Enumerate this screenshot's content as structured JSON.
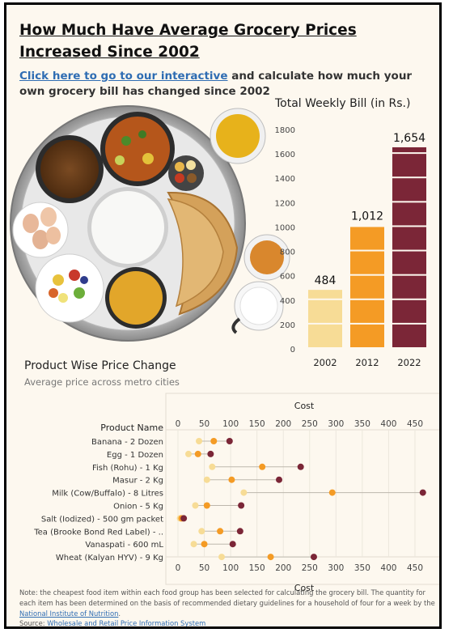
{
  "title": "How Much Have Average Grocery Prices Increased Since 2002",
  "intro": {
    "link_text": "Click here to go to our interactive",
    "rest_text": " and calculate how much your own grocery bill has changed since 2002"
  },
  "bar_chart": {
    "title": "Total Weekly Bill (in Rs.)"
  },
  "dot_chart": {
    "title": "Product Wise Price Change",
    "subtitle": "Average price across metro cities"
  },
  "note": {
    "text": "Note: the cheapest food item within each food group has been selected for calculating the grocery bill. The quantity for each item has been determined on the basis of recommended dietary guidelines for a household of four for a week by the ",
    "link_text": "National Institute of Nutrition",
    "end": "."
  },
  "source": {
    "label": "Source: ",
    "link_text": "Wholesale and Retail Price Information System"
  },
  "colors": {
    "y2002": "#f7dc96",
    "y2012": "#f49b25",
    "y2022": "#7b2637",
    "link": "#2f6db3"
  },
  "chart_data": [
    {
      "type": "bar",
      "title": "Total Weekly Bill (in Rs.)",
      "categories": [
        "2002",
        "2012",
        "2022"
      ],
      "values": [
        484,
        1012,
        1654
      ],
      "data_labels": [
        "484",
        "1,012",
        "1,654"
      ],
      "ylim": [
        0,
        1800
      ],
      "yticks": [
        0,
        200,
        400,
        600,
        800,
        1000,
        1200,
        1400,
        1600,
        1800
      ],
      "colors": [
        "#f7dc96",
        "#f49b25",
        "#7b2637"
      ]
    },
    {
      "type": "scatter",
      "title": "Product Wise Price Change",
      "subtitle": "Average price across metro cities",
      "xlabel": "Cost",
      "ylabel": "Product Name",
      "xlim": [
        0,
        470
      ],
      "xticks": [
        0,
        50,
        100,
        150,
        200,
        250,
        300,
        350,
        400,
        450
      ],
      "series_names": [
        "2002",
        "2012",
        "2022"
      ],
      "products": [
        {
          "name": "Banana - 2 Dozen",
          "values": [
            40,
            68,
            98
          ]
        },
        {
          "name": "Egg - 1 Dozen",
          "values": [
            20,
            38,
            62
          ]
        },
        {
          "name": "Fish (Rohu) - 1 Kg",
          "values": [
            65,
            160,
            233
          ]
        },
        {
          "name": "Masur - 2 Kg",
          "values": [
            55,
            102,
            192
          ]
        },
        {
          "name": "Milk (Cow/Buffalo) - 8 Litres",
          "values": [
            125,
            293,
            465
          ]
        },
        {
          "name": "Onion - 5 Kg",
          "values": [
            33,
            55,
            120
          ]
        },
        {
          "name": "Salt (Iodized) - 500 gm packet",
          "values": [
            4,
            7,
            11
          ]
        },
        {
          "name": "Tea (Brooke Bond Red Label) - ..",
          "values": [
            45,
            80,
            118
          ]
        },
        {
          "name": "Vanaspati - 600 mL",
          "values": [
            30,
            50,
            104
          ]
        },
        {
          "name": "Wheat (Kalyan HYV) - 9 Kg",
          "values": [
            83,
            176,
            258
          ]
        }
      ]
    }
  ]
}
